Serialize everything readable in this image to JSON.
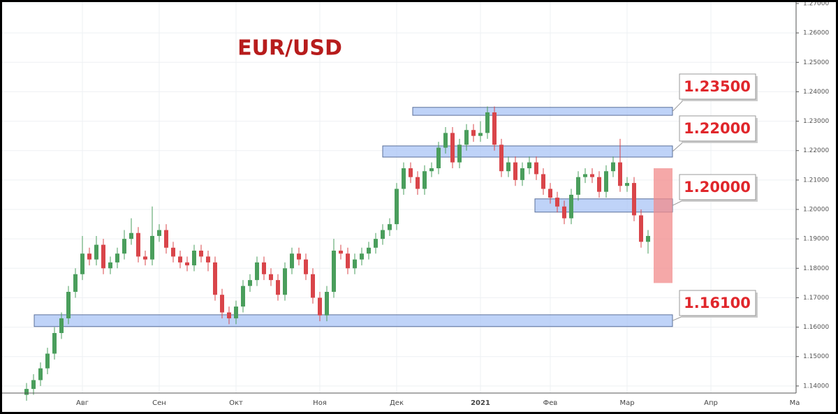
{
  "chart_data": {
    "type": "candlestick",
    "title": "EUR/USD",
    "categories": [
      null,
      null,
      null,
      null,
      null,
      null,
      null,
      null,
      "Авг",
      null,
      null,
      null,
      null,
      null,
      null,
      null,
      null,
      null,
      null,
      "Сен",
      null,
      null,
      null,
      null,
      null,
      null,
      null,
      null,
      null,
      null,
      "Окт",
      null,
      null,
      null,
      null,
      null,
      null,
      null,
      null,
      null,
      null,
      null,
      "Ноя",
      null,
      null,
      null,
      null,
      null,
      null,
      null,
      null,
      null,
      null,
      "Дек",
      null,
      null,
      null,
      null,
      null,
      null,
      null,
      null,
      null,
      null,
      null,
      "2021",
      null,
      null,
      null,
      null,
      null,
      null,
      null,
      null,
      null,
      "Фев",
      null,
      null,
      null,
      null,
      null,
      null,
      null,
      null,
      null,
      null,
      "Мар",
      null,
      null,
      null,
      null,
      null,
      null,
      null,
      null,
      null,
      null,
      null,
      "Апр",
      null,
      null,
      null,
      null,
      null,
      null,
      null,
      null,
      null,
      null,
      null,
      "Ма"
    ],
    "open": [
      1.137,
      1.139,
      1.142,
      1.146,
      1.151,
      1.158,
      1.163,
      1.172,
      1.178,
      1.185,
      1.183,
      1.188,
      1.18,
      1.182,
      1.185,
      1.19,
      1.192,
      1.184,
      1.183,
      1.191,
      1.193,
      1.187,
      1.184,
      1.182,
      1.181,
      1.186,
      1.184,
      1.182,
      1.171,
      1.165,
      1.163,
      1.167,
      1.174,
      1.176,
      1.182,
      1.178,
      1.176,
      1.171,
      1.18,
      1.185,
      1.183,
      1.178,
      1.17,
      1.164,
      1.172,
      1.186,
      1.185,
      1.18,
      1.183,
      1.185,
      1.187,
      1.19,
      1.193,
      1.195,
      1.207,
      1.214,
      1.211,
      1.207,
      1.213,
      1.214,
      1.221,
      1.226,
      1.216,
      1.222,
      1.227,
      1.225,
      1.226,
      1.233,
      1.222,
      1.213,
      1.216,
      1.21,
      1.214,
      1.216,
      1.212,
      1.207,
      1.204,
      1.201,
      1.197,
      1.205,
      1.211,
      1.212,
      1.211,
      1.206,
      1.213,
      1.216,
      1.208,
      1.209,
      1.198,
      1.189,
      null,
      null,
      null,
      null,
      null,
      null,
      null,
      null,
      null,
      null,
      null,
      null,
      null,
      null,
      null,
      null,
      null,
      null,
      null,
      null,
      null
    ],
    "high": [
      1.141,
      1.144,
      1.148,
      1.153,
      1.16,
      1.165,
      1.174,
      1.18,
      1.191,
      1.187,
      1.191,
      1.19,
      1.184,
      1.187,
      1.193,
      1.197,
      1.194,
      1.186,
      1.201,
      1.195,
      1.195,
      1.189,
      1.186,
      1.184,
      1.188,
      1.188,
      1.186,
      1.184,
      1.173,
      1.167,
      1.169,
      1.176,
      1.178,
      1.184,
      1.184,
      1.18,
      1.178,
      1.182,
      1.187,
      1.187,
      1.185,
      1.18,
      1.172,
      1.174,
      1.19,
      1.188,
      1.187,
      1.185,
      1.187,
      1.189,
      1.192,
      1.195,
      1.197,
      1.209,
      1.216,
      1.216,
      1.213,
      1.215,
      1.216,
      1.223,
      1.228,
      1.228,
      1.224,
      1.229,
      1.229,
      1.23,
      1.235,
      1.235,
      1.224,
      1.218,
      1.218,
      1.216,
      1.218,
      1.218,
      1.214,
      1.209,
      1.206,
      1.203,
      1.207,
      1.213,
      1.214,
      1.214,
      1.213,
      1.215,
      1.218,
      1.224,
      1.211,
      1.211,
      1.2,
      1.193,
      null,
      null,
      null,
      null,
      null,
      null,
      null,
      null,
      null,
      null,
      null,
      null,
      null,
      null,
      null,
      null,
      null,
      null,
      null,
      null,
      null
    ],
    "low": [
      1.135,
      1.137,
      1.14,
      1.144,
      1.149,
      1.156,
      1.161,
      1.17,
      1.176,
      1.181,
      1.181,
      1.178,
      1.178,
      1.18,
      1.183,
      1.188,
      1.182,
      1.181,
      1.181,
      1.189,
      1.185,
      1.182,
      1.18,
      1.179,
      1.179,
      1.182,
      1.179,
      1.169,
      1.163,
      1.161,
      1.161,
      1.165,
      1.172,
      1.174,
      1.176,
      1.174,
      1.169,
      1.169,
      1.178,
      1.181,
      1.176,
      1.168,
      1.162,
      1.162,
      1.17,
      1.183,
      1.178,
      1.178,
      1.181,
      1.183,
      1.185,
      1.188,
      1.191,
      1.193,
      1.205,
      1.209,
      1.205,
      1.205,
      1.211,
      1.212,
      1.219,
      1.214,
      1.214,
      1.22,
      1.223,
      1.223,
      1.224,
      1.22,
      1.211,
      1.211,
      1.208,
      1.208,
      1.212,
      1.21,
      1.205,
      1.202,
      1.199,
      1.195,
      1.195,
      1.203,
      1.209,
      1.209,
      1.204,
      1.204,
      1.211,
      1.206,
      1.206,
      1.196,
      1.187,
      1.185,
      null,
      null,
      null,
      null,
      null,
      null,
      null,
      null,
      null,
      null,
      null,
      null,
      null,
      null,
      null,
      null,
      null,
      null,
      null,
      null,
      null
    ],
    "close": [
      1.139,
      1.142,
      1.146,
      1.151,
      1.158,
      1.163,
      1.172,
      1.178,
      1.185,
      1.183,
      1.188,
      1.18,
      1.182,
      1.185,
      1.19,
      1.192,
      1.184,
      1.183,
      1.191,
      1.193,
      1.187,
      1.184,
      1.182,
      1.181,
      1.186,
      1.184,
      1.182,
      1.171,
      1.165,
      1.163,
      1.167,
      1.174,
      1.176,
      1.182,
      1.178,
      1.176,
      1.171,
      1.18,
      1.185,
      1.183,
      1.178,
      1.17,
      1.164,
      1.172,
      1.186,
      1.185,
      1.18,
      1.183,
      1.185,
      1.187,
      1.19,
      1.193,
      1.195,
      1.207,
      1.214,
      1.211,
      1.207,
      1.213,
      1.214,
      1.221,
      1.226,
      1.216,
      1.222,
      1.227,
      1.225,
      1.226,
      1.233,
      1.222,
      1.213,
      1.216,
      1.21,
      1.214,
      1.216,
      1.212,
      1.207,
      1.204,
      1.201,
      1.197,
      1.205,
      1.211,
      1.212,
      1.211,
      1.206,
      1.213,
      1.216,
      1.208,
      1.209,
      1.198,
      1.189,
      1.191,
      null,
      null,
      null,
      null,
      null,
      null,
      null,
      null,
      null,
      null,
      null,
      null,
      null,
      null,
      null,
      null,
      null,
      null,
      null,
      null,
      null
    ],
    "up_color": "#4a9e5c",
    "down_color": "#d9454a",
    "ylim": [
      1.1376,
      1.27
    ],
    "yticks": [
      {
        "value": 1.14,
        "label": "1.14000"
      },
      {
        "value": 1.15,
        "label": "1.15000"
      },
      {
        "value": 1.16,
        "label": "1.16000"
      },
      {
        "value": 1.17,
        "label": "1.17000"
      },
      {
        "value": 1.18,
        "label": "1.18000"
      },
      {
        "value": 1.19,
        "label": "1.19000"
      },
      {
        "value": 1.2,
        "label": "1.20000"
      },
      {
        "value": 1.21,
        "label": "1.21000"
      },
      {
        "value": 1.22,
        "label": "1.22000"
      },
      {
        "value": 1.23,
        "label": "1.23000"
      },
      {
        "value": 1.24,
        "label": "1.24000"
      },
      {
        "value": 1.25,
        "label": "1.25000"
      },
      {
        "value": 1.26,
        "label": "1.26000"
      },
      {
        "value": 1.27,
        "label": "1.27000"
      }
    ],
    "grid": true,
    "zones": [
      {
        "label": "1.23500",
        "low": 1.232,
        "high": 1.2347
      },
      {
        "label": "1.22000",
        "low": 1.2178,
        "high": 1.2216
      },
      {
        "label": "1.20000",
        "low": 1.1991,
        "high": 1.2036
      },
      {
        "label": "1.16100",
        "low": 1.1602,
        "high": 1.1642
      }
    ],
    "zone_color": "#a9c4f5",
    "target_zone": {
      "low": 1.175,
      "high": 1.214,
      "color": "#f28b8b"
    }
  }
}
